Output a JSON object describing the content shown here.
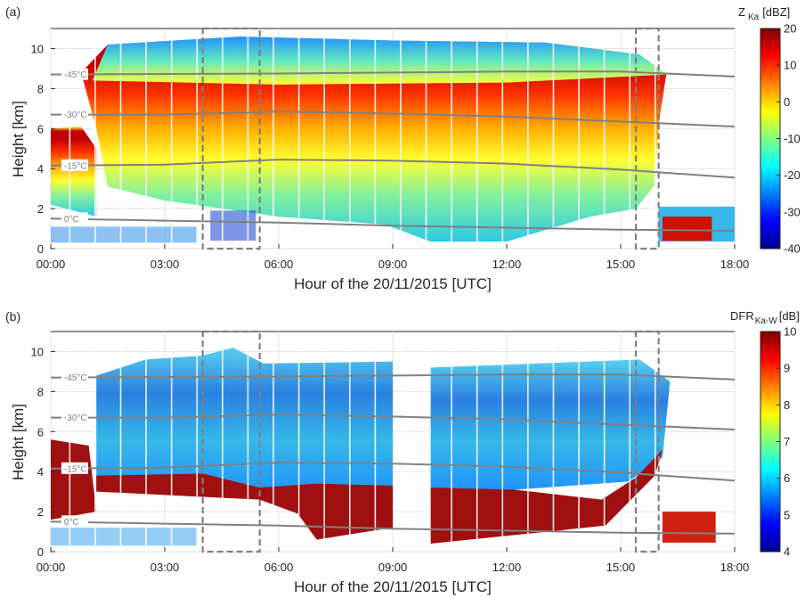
{
  "chart_data": [
    {
      "type": "heatmap",
      "panel_label": "(a)",
      "xlabel": "Hour of the 20/11/2015 [UTC]",
      "ylabel": "Height [km]",
      "xticks": [
        "00:00",
        "03:00",
        "06:00",
        "09:00",
        "12:00",
        "15:00",
        "18:00"
      ],
      "xlim_hours": [
        0,
        18
      ],
      "ylim": [
        0,
        11
      ],
      "yticks": [
        0,
        2,
        4,
        6,
        8,
        10
      ],
      "colorbar": {
        "label_main": "Z",
        "label_sub": "Ka",
        "unit": "[dBZ]",
        "min": -40,
        "max": 20,
        "ticks": [
          20,
          10,
          0,
          -10,
          -20,
          -30,
          -40
        ]
      },
      "isotherms": [
        {
          "label": "-45°C",
          "points": [
            [
              0,
              8.7
            ],
            [
              6,
              8.75
            ],
            [
              9,
              8.8
            ],
            [
              12,
              8.85
            ],
            [
              15,
              8.85
            ],
            [
              18,
              8.6
            ]
          ]
        },
        {
          "label": "-30°C",
          "points": [
            [
              0,
              6.7
            ],
            [
              3,
              6.7
            ],
            [
              6,
              6.85
            ],
            [
              9,
              6.75
            ],
            [
              12,
              6.6
            ],
            [
              15,
              6.35
            ],
            [
              18,
              6.1
            ]
          ]
        },
        {
          "label": "-15°C",
          "points": [
            [
              0,
              4.15
            ],
            [
              3,
              4.2
            ],
            [
              6,
              4.45
            ],
            [
              9,
              4.4
            ],
            [
              12,
              4.25
            ],
            [
              15,
              3.95
            ],
            [
              18,
              3.55
            ]
          ]
        },
        {
          "label": "0°C",
          "points": [
            [
              0,
              1.5
            ],
            [
              3,
              1.4
            ],
            [
              6,
              1.3
            ],
            [
              9,
              1.15
            ],
            [
              12,
              1.05
            ],
            [
              15,
              0.95
            ],
            [
              18,
              0.9
            ]
          ]
        }
      ],
      "highlight_boxes_hours": [
        [
          4.0,
          5.5
        ],
        [
          15.4,
          16.0
        ]
      ]
    },
    {
      "type": "heatmap",
      "panel_label": "(b)",
      "xlabel": "Hour of the 20/11/2015 [UTC]",
      "ylabel": "Height [km]",
      "xticks": [
        "00:00",
        "03:00",
        "06:00",
        "09:00",
        "12:00",
        "15:00",
        "18:00"
      ],
      "xlim_hours": [
        0,
        18
      ],
      "ylim": [
        0,
        11
      ],
      "yticks": [
        0,
        2,
        4,
        6,
        8,
        10
      ],
      "colorbar": {
        "label_main": "DFR",
        "label_sub": "Ka-W",
        "unit": "[dB]",
        "min": 4,
        "max": 10,
        "ticks": [
          10,
          9,
          8,
          7,
          6,
          5,
          4
        ]
      },
      "isotherms": [
        {
          "label": "-45°C",
          "points": [
            [
              0,
              8.7
            ],
            [
              6,
              8.75
            ],
            [
              9,
              8.8
            ],
            [
              12,
              8.85
            ],
            [
              15,
              8.85
            ],
            [
              18,
              8.6
            ]
          ]
        },
        {
          "label": "-30°C",
          "points": [
            [
              0,
              6.7
            ],
            [
              3,
              6.7
            ],
            [
              6,
              6.85
            ],
            [
              9,
              6.75
            ],
            [
              12,
              6.6
            ],
            [
              15,
              6.35
            ],
            [
              18,
              6.1
            ]
          ]
        },
        {
          "label": "-15°C",
          "points": [
            [
              0,
              4.15
            ],
            [
              3,
              4.2
            ],
            [
              6,
              4.45
            ],
            [
              9,
              4.4
            ],
            [
              12,
              4.25
            ],
            [
              15,
              3.95
            ],
            [
              18,
              3.55
            ]
          ]
        },
        {
          "label": "0°C",
          "points": [
            [
              0,
              1.5
            ],
            [
              3,
              1.4
            ],
            [
              6,
              1.3
            ],
            [
              9,
              1.15
            ],
            [
              12,
              1.05
            ],
            [
              15,
              0.95
            ],
            [
              18,
              0.9
            ]
          ]
        }
      ],
      "highlight_boxes_hours": [
        [
          4.0,
          5.5
        ],
        [
          15.4,
          16.0
        ]
      ]
    }
  ]
}
